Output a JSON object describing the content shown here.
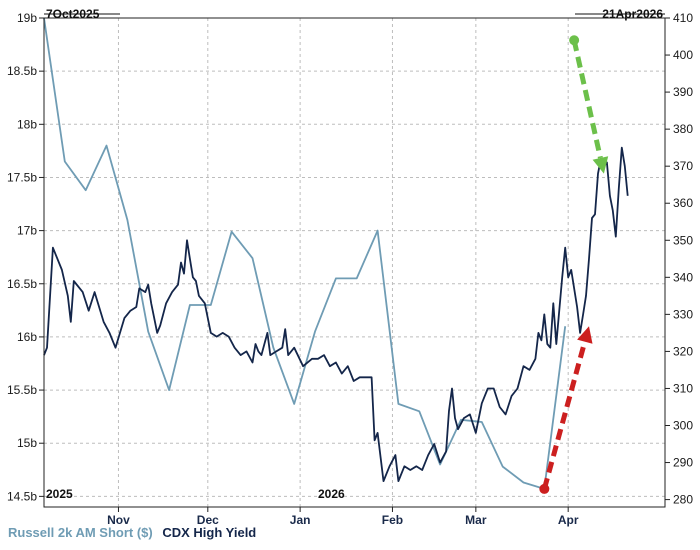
{
  "chart_data": {
    "type": "line",
    "date_range": {
      "start_label": "7Oct2025",
      "end_label": "21Apr2026"
    },
    "x_tick_labels": [
      "Nov",
      "Dec",
      "Jan",
      "Feb",
      "Mar",
      "Apr"
    ],
    "year_labels": [
      "2025",
      "2026"
    ],
    "left_axis": {
      "ylim": [
        14.4,
        19
      ],
      "tick_labels": [
        "19b",
        "18.5b",
        "18b",
        "17.5b",
        "17b",
        "16.5b",
        "16b",
        "15.5b",
        "15b",
        "14.5b"
      ],
      "tick_values": [
        19,
        18.5,
        18,
        17.5,
        17,
        16.5,
        16,
        15.5,
        15,
        14.5
      ]
    },
    "right_axis": {
      "ylim": [
        278,
        410
      ],
      "tick_labels": [
        "410",
        "400",
        "390",
        "380",
        "370",
        "360",
        "350",
        "340",
        "330",
        "320",
        "310",
        "300",
        "290",
        "280"
      ],
      "tick_values": [
        410,
        400,
        390,
        380,
        370,
        360,
        350,
        340,
        330,
        320,
        310,
        300,
        290,
        280
      ]
    },
    "grid": true,
    "series": [
      {
        "name": "Russell 2k AM Short ($)",
        "axis": "left",
        "color": "#6f9cb4",
        "points": [
          [
            "2025-10-07",
            19.0
          ],
          [
            "2025-10-14",
            17.65
          ],
          [
            "2025-10-21",
            17.38
          ],
          [
            "2025-10-28",
            17.8
          ],
          [
            "2025-11-04",
            17.1
          ],
          [
            "2025-11-11",
            16.05
          ],
          [
            "2025-11-18",
            15.5
          ],
          [
            "2025-11-25",
            16.3
          ],
          [
            "2025-12-02",
            16.3
          ],
          [
            "2025-12-09",
            16.99
          ],
          [
            "2025-12-16",
            16.74
          ],
          [
            "2025-12-23",
            15.9
          ],
          [
            "2025-12-30",
            15.37
          ],
          [
            "2026-01-06",
            16.05
          ],
          [
            "2026-01-13",
            16.55
          ],
          [
            "2026-01-20",
            16.55
          ],
          [
            "2026-01-27",
            17.0
          ],
          [
            "2026-02-03",
            15.37
          ],
          [
            "2026-02-10",
            15.3
          ],
          [
            "2026-02-17",
            14.8
          ],
          [
            "2026-02-24",
            15.22
          ],
          [
            "2026-03-03",
            15.2
          ],
          [
            "2026-03-10",
            14.78
          ],
          [
            "2026-03-17",
            14.63
          ],
          [
            "2026-03-24",
            14.57
          ],
          [
            "2026-03-31",
            16.1
          ]
        ]
      },
      {
        "name": "CDX High Yield",
        "axis": "right",
        "color": "#14264a",
        "points": [
          [
            "2025-10-07",
            319
          ],
          [
            "2025-10-08",
            321
          ],
          [
            "2025-10-10",
            348
          ],
          [
            "2025-10-13",
            342
          ],
          [
            "2025-10-15",
            335
          ],
          [
            "2025-10-16",
            328
          ],
          [
            "2025-10-17",
            339
          ],
          [
            "2025-10-20",
            336
          ],
          [
            "2025-10-22",
            331
          ],
          [
            "2025-10-24",
            336
          ],
          [
            "2025-10-27",
            328
          ],
          [
            "2025-10-29",
            325
          ],
          [
            "2025-10-31",
            321
          ],
          [
            "2025-11-03",
            329
          ],
          [
            "2025-11-05",
            331
          ],
          [
            "2025-11-07",
            332
          ],
          [
            "2025-11-08",
            337
          ],
          [
            "2025-11-10",
            336
          ],
          [
            "2025-11-11",
            338
          ],
          [
            "2025-11-12",
            333
          ],
          [
            "2025-11-13",
            329
          ],
          [
            "2025-11-14",
            325
          ],
          [
            "2025-11-15",
            327
          ],
          [
            "2025-11-17",
            333
          ],
          [
            "2025-11-19",
            336
          ],
          [
            "2025-11-21",
            338
          ],
          [
            "2025-11-22",
            344
          ],
          [
            "2025-11-23",
            341
          ],
          [
            "2025-11-24",
            350
          ],
          [
            "2025-11-25",
            345
          ],
          [
            "2025-11-26",
            340
          ],
          [
            "2025-11-27",
            339
          ],
          [
            "2025-11-28",
            335
          ],
          [
            "2025-11-30",
            333
          ],
          [
            "2025-12-02",
            325
          ],
          [
            "2025-12-04",
            324
          ],
          [
            "2025-12-06",
            325
          ],
          [
            "2025-12-08",
            324
          ],
          [
            "2025-12-10",
            321
          ],
          [
            "2025-12-12",
            319
          ],
          [
            "2025-12-14",
            320
          ],
          [
            "2025-12-16",
            317
          ],
          [
            "2025-12-17",
            322
          ],
          [
            "2025-12-18",
            320
          ],
          [
            "2025-12-19",
            319
          ],
          [
            "2025-12-21",
            325
          ],
          [
            "2025-12-22",
            319
          ],
          [
            "2025-12-24",
            320
          ],
          [
            "2025-12-26",
            321
          ],
          [
            "2025-12-27",
            326
          ],
          [
            "2025-12-28",
            319
          ],
          [
            "2025-12-30",
            321
          ],
          [
            "2026-01-02",
            316
          ],
          [
            "2026-01-05",
            318
          ],
          [
            "2026-01-07",
            318
          ],
          [
            "2026-01-09",
            319
          ],
          [
            "2026-01-11",
            316
          ],
          [
            "2026-01-13",
            317
          ],
          [
            "2026-01-15",
            314
          ],
          [
            "2026-01-17",
            316
          ],
          [
            "2026-01-19",
            312
          ],
          [
            "2026-01-21",
            313
          ],
          [
            "2026-01-23",
            313
          ],
          [
            "2026-01-25",
            313
          ],
          [
            "2026-01-26",
            296
          ],
          [
            "2026-01-27",
            298
          ],
          [
            "2026-01-29",
            285
          ],
          [
            "2026-01-31",
            289
          ],
          [
            "2026-02-02",
            292
          ],
          [
            "2026-02-03",
            285
          ],
          [
            "2026-02-05",
            289
          ],
          [
            "2026-02-07",
            288
          ],
          [
            "2026-02-09",
            289
          ],
          [
            "2026-02-11",
            288
          ],
          [
            "2026-02-13",
            292
          ],
          [
            "2026-02-15",
            295
          ],
          [
            "2026-02-17",
            290
          ],
          [
            "2026-02-19",
            293
          ],
          [
            "2026-02-20",
            304
          ],
          [
            "2026-02-21",
            310
          ],
          [
            "2026-02-22",
            302
          ],
          [
            "2026-02-23",
            299
          ],
          [
            "2026-02-25",
            302
          ],
          [
            "2026-02-27",
            303
          ],
          [
            "2026-03-01",
            298
          ],
          [
            "2026-03-03",
            306
          ],
          [
            "2026-03-05",
            310
          ],
          [
            "2026-03-07",
            310
          ],
          [
            "2026-03-09",
            305
          ],
          [
            "2026-03-11",
            303
          ],
          [
            "2026-03-13",
            308
          ],
          [
            "2026-03-15",
            310
          ],
          [
            "2026-03-17",
            316
          ],
          [
            "2026-03-19",
            315
          ],
          [
            "2026-03-21",
            318
          ],
          [
            "2026-03-22",
            325
          ],
          [
            "2026-03-23",
            323
          ],
          [
            "2026-03-24",
            330
          ],
          [
            "2026-03-25",
            322
          ],
          [
            "2026-03-26",
            321
          ],
          [
            "2026-03-27",
            333
          ],
          [
            "2026-03-28",
            322
          ],
          [
            "2026-03-30",
            340
          ],
          [
            "2026-03-31",
            348
          ],
          [
            "2026-04-01",
            340
          ],
          [
            "2026-04-02",
            342
          ],
          [
            "2026-04-04",
            332
          ],
          [
            "2026-04-05",
            325
          ],
          [
            "2026-04-06",
            330
          ],
          [
            "2026-04-07",
            335
          ],
          [
            "2026-04-08",
            345
          ],
          [
            "2026-04-09",
            356
          ],
          [
            "2026-04-10",
            357
          ],
          [
            "2026-04-11",
            368
          ],
          [
            "2026-04-12",
            372
          ],
          [
            "2026-04-13",
            370
          ],
          [
            "2026-04-14",
            371
          ],
          [
            "2026-04-15",
            362
          ],
          [
            "2026-04-16",
            358
          ],
          [
            "2026-04-17",
            351
          ],
          [
            "2026-04-18",
            364
          ],
          [
            "2026-04-19",
            375
          ],
          [
            "2026-04-20",
            370
          ],
          [
            "2026-04-21",
            362
          ]
        ]
      }
    ],
    "annotations": [
      {
        "type": "arrow",
        "color": "#6cc04a",
        "style": "dashed",
        "from": [
          "2026-04-03",
          404
        ],
        "to": [
          "2026-04-13",
          368
        ]
      },
      {
        "type": "arrow",
        "color": "#cc1f1f",
        "style": "dashed",
        "from": [
          "2026-03-24",
          14.57
        ],
        "to": [
          "2026-04-08",
          16.1
        ]
      }
    ]
  }
}
